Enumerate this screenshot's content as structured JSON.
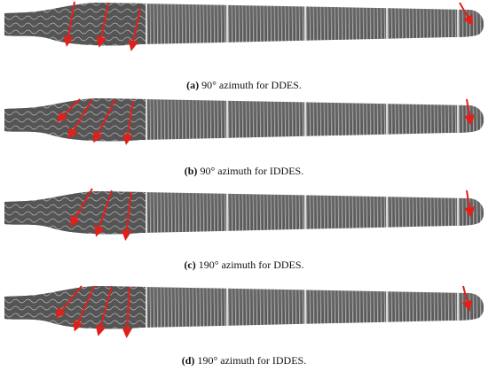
{
  "panels": [
    {
      "label": "(a)",
      "caption": "90° azimuth for DDES."
    },
    {
      "label": "(b)",
      "caption": "90° azimuth for IDDES."
    },
    {
      "label": "(c)",
      "caption": "190° azimuth for DDES."
    },
    {
      "label": "(d)",
      "caption": "190° azimuth for IDDES."
    }
  ]
}
